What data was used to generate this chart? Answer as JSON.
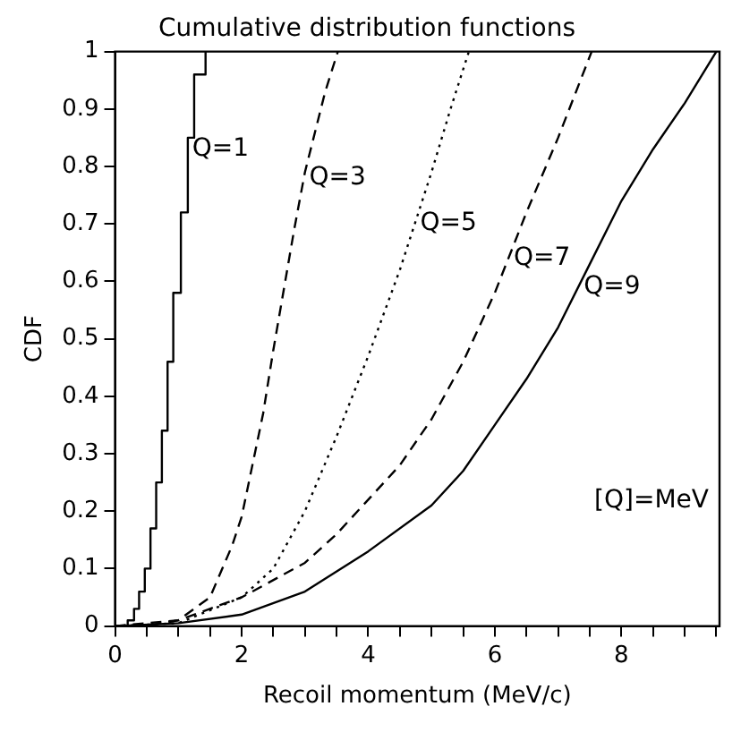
{
  "chart_data": {
    "type": "line",
    "title": "Cumulative distribution functions",
    "xlabel": "Recoil momentum (MeV/c)",
    "ylabel": "CDF",
    "xlim": [
      0,
      9.55
    ],
    "xticks": [
      0,
      {
        "value": 0.5,
        "label": null
      },
      {
        "value": 1,
        "label": null
      },
      {
        "value": 1.5,
        "label": null
      },
      2,
      {
        "value": 2.5,
        "label": null
      },
      {
        "value": 3,
        "label": null
      },
      {
        "value": 3.5,
        "label": null
      },
      4,
      {
        "value": 4.5,
        "label": null
      },
      {
        "value": 5,
        "label": null
      },
      {
        "value": 5.5,
        "label": null
      },
      6,
      {
        "value": 6.5,
        "label": null
      },
      {
        "value": 7,
        "label": null
      },
      {
        "value": 7.5,
        "label": null
      },
      8,
      {
        "value": 8.5,
        "label": null
      },
      {
        "value": 9,
        "label": null
      },
      {
        "value": 9.5,
        "label": null
      }
    ],
    "ylim": [
      0,
      1
    ],
    "yticks": [
      0,
      0.1,
      0.2,
      0.3,
      0.4,
      0.5,
      0.6,
      0.7,
      0.8,
      0.9,
      1
    ],
    "annotations": [
      "[Q]=MeV"
    ],
    "series": [
      {
        "name": "Q=1",
        "type": "step",
        "color": "#000000",
        "line_style": "solid",
        "x": [
          0,
          0.2,
          0.3,
          0.38,
          0.47,
          0.56,
          0.65,
          0.74,
          0.83,
          0.92,
          1.04,
          1.15,
          1.25,
          1.43
        ],
        "values": [
          0,
          0.01,
          0.03,
          0.06,
          0.1,
          0.17,
          0.25,
          0.34,
          0.46,
          0.58,
          0.72,
          0.85,
          0.96,
          1
        ]
      },
      {
        "name": "Q=3",
        "color": "#000000",
        "line_style": "dashed",
        "x": [
          0,
          0.5,
          1,
          1.5,
          1.85,
          2,
          2.34,
          2.5,
          2.83,
          3,
          3.32,
          3.52
        ],
        "values": [
          0,
          0,
          0.01,
          0.05,
          0.14,
          0.19,
          0.37,
          0.48,
          0.69,
          0.79,
          0.93,
          1
        ]
      },
      {
        "name": "Q=5",
        "color": "#000000",
        "line_style": "dotted",
        "x": [
          0,
          1,
          2,
          2.5,
          3,
          3.5,
          4,
          4.5,
          5,
          5.3,
          5.59
        ],
        "values": [
          0,
          0.005,
          0.05,
          0.1,
          0.2,
          0.33,
          0.47,
          0.62,
          0.79,
          0.9,
          1
        ]
      },
      {
        "name": "Q=7",
        "color": "#000000",
        "line_style": "dashed",
        "x": [
          0,
          1,
          2,
          3,
          3.5,
          4,
          4.5,
          5,
          5.5,
          6,
          6.5,
          7,
          7.53
        ],
        "values": [
          0,
          0.01,
          0.05,
          0.11,
          0.16,
          0.22,
          0.28,
          0.36,
          0.46,
          0.58,
          0.72,
          0.85,
          1
        ]
      },
      {
        "name": "Q=9",
        "color": "#000000",
        "line_style": "solid",
        "x": [
          0,
          1,
          2,
          3,
          4,
          5,
          5.5,
          6,
          6.5,
          7,
          7.5,
          8,
          8.5,
          9,
          9.5
        ],
        "values": [
          0,
          0.005,
          0.02,
          0.06,
          0.13,
          0.21,
          0.27,
          0.35,
          0.43,
          0.52,
          0.63,
          0.74,
          0.83,
          0.91,
          1
        ]
      }
    ]
  }
}
